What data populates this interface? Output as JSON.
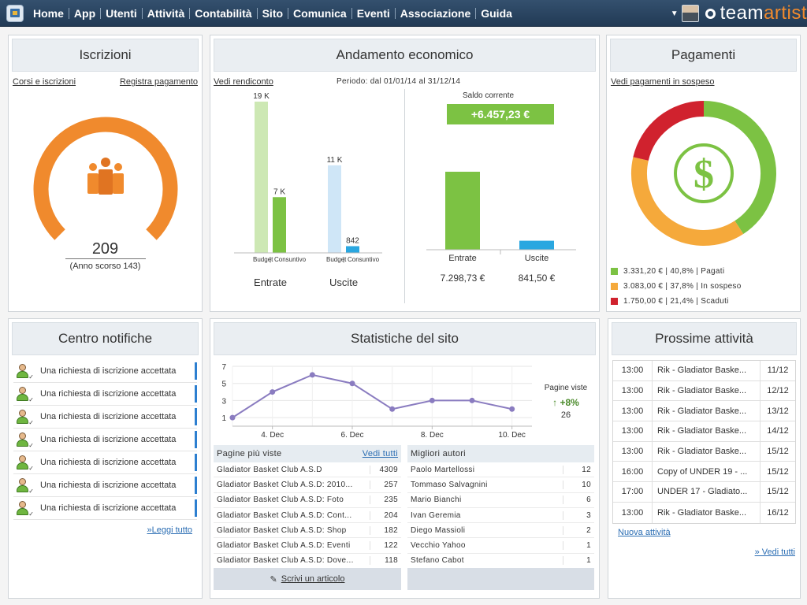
{
  "nav": {
    "items": [
      "Home",
      "App",
      "Utenti",
      "Attività",
      "Contabilità",
      "Sito",
      "Comunica",
      "Eventi",
      "Associazione",
      "Guida"
    ],
    "brand_a": "team",
    "brand_b": "artist"
  },
  "iscrizioni": {
    "title": "Iscrizioni",
    "link_left": "Corsi e iscrizioni",
    "link_right": "Registra pagamento",
    "count": "209",
    "previous": "(Anno scorso 143)",
    "gauge_fraction": 0.76,
    "color": "#f08a2d"
  },
  "economico": {
    "title": "Andamento economico",
    "link": "Vedi rendiconto",
    "period": "Periodo: dal 01/01/14 al 31/12/14",
    "saldo_label": "Saldo corrente",
    "saldo": "+6.457,23 €",
    "chart_data": [
      {
        "type": "bar",
        "categories": [
          "Entrate",
          "Uscite"
        ],
        "subcategories": [
          "Budget",
          "Consuntivo"
        ],
        "series": [
          {
            "name": "Budget",
            "values": [
              19000,
              11000
            ],
            "labels": [
              "19 K",
              "11 K"
            ]
          },
          {
            "name": "Consuntivo",
            "values": [
              7000,
              842
            ],
            "labels": [
              "7 K",
              "842"
            ]
          }
        ],
        "colors": {
          "entrate_budget": "#cde8b4",
          "entrate_consuntivo": "#7cc243",
          "uscite_budget": "#cfe6f7",
          "uscite_consuntivo": "#2aa7e0"
        },
        "ylim": [
          0,
          19000
        ]
      },
      {
        "type": "bar",
        "categories": [
          "Entrate",
          "Uscite"
        ],
        "values": [
          7298.73,
          841.5
        ],
        "value_labels": [
          "7.298,73 €",
          "841,50 €"
        ],
        "colors": [
          "#7cc243",
          "#2aa7e0"
        ],
        "ylim": [
          0,
          7298.73
        ]
      }
    ]
  },
  "pagamenti": {
    "title": "Pagamenti",
    "link": "Vedi pagamenti in sospeso",
    "icon": "dollar-icon",
    "chart_data": {
      "type": "pie",
      "donut": true,
      "categories": [
        "Pagati",
        "In sospeso",
        "Scaduti"
      ],
      "values": [
        40.8,
        37.8,
        21.4
      ],
      "colors": [
        "#7cc243",
        "#f5a93b",
        "#d0222e"
      ],
      "legend": [
        "3.331,20 € | 40,8% | Pagati",
        "3.083,00 € | 37,8% | In sospeso",
        "1.750,00 € | 21,4% | Scaduti"
      ]
    }
  },
  "notifiche": {
    "title": "Centro notifiche",
    "items": [
      "Una richiesta di iscrizione accettata",
      "Una richiesta di iscrizione accettata",
      "Una richiesta di iscrizione accettata",
      "Una richiesta di iscrizione accettata",
      "Una richiesta di iscrizione accettata",
      "Una richiesta di iscrizione accettata",
      "Una richiesta di iscrizione accettata"
    ],
    "more": "»Leggi tutto"
  },
  "statistiche": {
    "title": "Statistiche del sito",
    "pv_label": "Pagine viste",
    "pv_delta": "↑ +8%",
    "pv_value": "26",
    "chart_data": {
      "type": "line",
      "x": [
        3,
        4,
        5,
        6,
        7,
        8,
        9,
        10
      ],
      "y": [
        1,
        4,
        6,
        5,
        2,
        3,
        3,
        2
      ],
      "xticks": [
        4,
        6,
        8,
        10
      ],
      "xtick_labels": [
        "4. Dec",
        "6. Dec",
        "8. Dec",
        "10. Dec"
      ],
      "yticks": [
        1,
        3,
        5,
        7
      ],
      "ylim": [
        0,
        7
      ],
      "color": "#8a7cc0"
    },
    "pages": {
      "header": "Pagine più viste",
      "link": "Vedi tutti",
      "rows": [
        {
          "name": "Gladiator Basket Club A.S.D",
          "value": "4309"
        },
        {
          "name": "Gladiator Basket Club A.S.D: 2010...",
          "value": "257"
        },
        {
          "name": "Gladiator Basket Club A.S.D: Foto",
          "value": "235"
        },
        {
          "name": "Gladiator Basket Club A.S.D: Cont...",
          "value": "204"
        },
        {
          "name": "Gladiator Basket Club A.S.D: Shop",
          "value": "182"
        },
        {
          "name": "Gladiator Basket Club A.S.D: Eventi",
          "value": "122"
        },
        {
          "name": "Gladiator Basket Club A.S.D: Dove...",
          "value": "118"
        }
      ],
      "footer": "Scrivi un articolo"
    },
    "authors": {
      "header": "Migliori autori",
      "rows": [
        {
          "name": "Paolo Martellossi",
          "value": "12"
        },
        {
          "name": "Tommaso Salvagnini",
          "value": "10"
        },
        {
          "name": "Mario Bianchi",
          "value": "6"
        },
        {
          "name": "Ivan Geremia",
          "value": "3"
        },
        {
          "name": "Diego Massioli",
          "value": "2"
        },
        {
          "name": "Vecchio Yahoo",
          "value": "1"
        },
        {
          "name": "Stefano Cabot",
          "value": "1"
        }
      ]
    }
  },
  "attivita": {
    "title": "Prossime attività",
    "rows": [
      {
        "time": "13:00",
        "title": "Rik - Gladiator Baske...",
        "date": "11/12"
      },
      {
        "time": "13:00",
        "title": "Rik - Gladiator Baske...",
        "date": "12/12"
      },
      {
        "time": "13:00",
        "title": "Rik - Gladiator Baske...",
        "date": "13/12"
      },
      {
        "time": "13:00",
        "title": "Rik - Gladiator Baske...",
        "date": "14/12"
      },
      {
        "time": "13:00",
        "title": "Rik - Gladiator Baske...",
        "date": "15/12"
      },
      {
        "time": "16:00",
        "title": "Copy of UNDER 19 - ...",
        "date": "15/12"
      },
      {
        "time": "17:00",
        "title": "UNDER 17 - Gladiato...",
        "date": "15/12"
      },
      {
        "time": "13:00",
        "title": "Rik - Gladiator Baske...",
        "date": "16/12"
      }
    ],
    "new_link": "Nuova attività",
    "more": "» Vedi tutti"
  }
}
